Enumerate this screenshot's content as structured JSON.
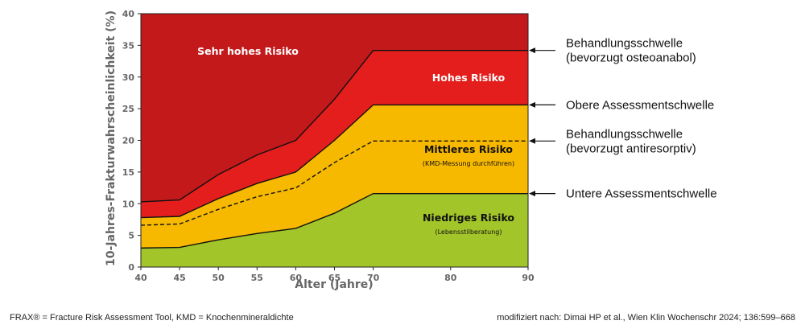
{
  "chart_data": {
    "type": "area",
    "xlabel": "Alter (Jahre)",
    "ylabel": "10-Jahres-Frakturwahrscheinlichkeit (%)",
    "xlim": [
      40,
      90
    ],
    "ylim": [
      0,
      40
    ],
    "x_ticks": [
      "40",
      "45",
      "50",
      "55",
      "60",
      "65",
      "70",
      "80",
      "90"
    ],
    "y_ticks": [
      "0",
      "5",
      "10",
      "15",
      "20",
      "25",
      "30",
      "35",
      "40"
    ],
    "grid": false,
    "x": [
      40,
      45,
      50,
      55,
      60,
      65,
      70,
      80,
      90
    ],
    "thresholds": [
      {
        "key": "untere",
        "values": [
          3.0,
          3.1,
          4.3,
          5.3,
          6.1,
          8.5,
          11.6,
          11.6,
          11.6
        ],
        "style": "solid",
        "label": "Untere Assessmentschwelle"
      },
      {
        "key": "antiresorptiv",
        "values": [
          6.6,
          6.8,
          9.1,
          11.1,
          12.5,
          16.5,
          19.9,
          19.9,
          19.9
        ],
        "style": "dashed",
        "label": "Behandlungsschwelle (bevorzugt antiresorptiv)"
      },
      {
        "key": "obere",
        "values": [
          7.8,
          8.0,
          10.8,
          13.2,
          15.0,
          20.0,
          25.6,
          25.6,
          25.6
        ],
        "style": "solid",
        "label": "Obere Assessmentschwelle"
      },
      {
        "key": "osteoanabol",
        "values": [
          10.3,
          10.6,
          14.6,
          17.7,
          20.0,
          26.5,
          34.2,
          34.2,
          34.2
        ],
        "style": "solid",
        "label": "Behandlungsschwelle (bevorzugt osteoanabol)"
      }
    ],
    "zones": [
      {
        "key": "niedrig",
        "name": "Niedriges Risiko",
        "note": "(Lebensstilberatung)",
        "color": "#a2c52a",
        "text_color": "#111111",
        "from": "axis",
        "to": "untere"
      },
      {
        "key": "mittel",
        "name": "Mittleres Risiko",
        "note": "(KMD-Messung durchführen)",
        "color": "#f7b800",
        "text_color": "#111111",
        "from": "untere",
        "to": "obere"
      },
      {
        "key": "hoch",
        "name": "Hohes Risiko",
        "note": "",
        "color": "#e31e1c",
        "text_color": "#ffffff",
        "from": "obere",
        "to": "osteoanabol"
      },
      {
        "key": "sehr_hoch",
        "name": "Sehr hohes Risiko",
        "note": "",
        "color": "#c3191b",
        "text_color": "#ffffff",
        "from": "osteoanabol",
        "to": "top"
      }
    ],
    "annotations": [
      {
        "lines": [
          "Behandlungsschwelle",
          "(bevorzugt osteoanabol)"
        ],
        "y": 34.2
      },
      {
        "lines": [
          "Obere Assessmentschwelle"
        ],
        "y": 25.6
      },
      {
        "lines": [
          "Behandlungsschwelle",
          "(bevorzugt antiresorptiv)"
        ],
        "y": 19.9
      },
      {
        "lines": [
          "Untere Assessmentschwelle"
        ],
        "y": 11.6
      }
    ]
  },
  "footer": {
    "left": "FRAX® = Fracture Risk Assessment Tool, KMD = Knochenmineraldichte",
    "right": "modifiziert nach: Dimai HP et al., Wien Klin Wochenschr 2024; 136:599–668"
  }
}
